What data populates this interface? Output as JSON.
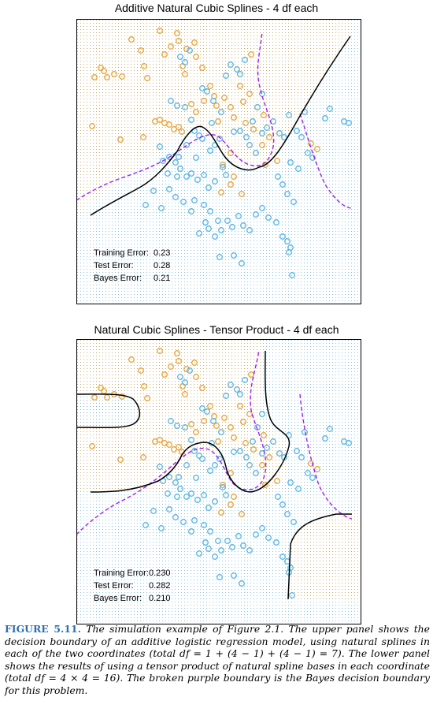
{
  "chart_data": [
    {
      "type": "scatter",
      "title": "Additive Natural Cubic Splines - 4 df each",
      "xlabel": "",
      "ylabel": "",
      "colors": {
        "class0": "#e8a33a",
        "class1": "#58b4e4",
        "model_boundary": "#000000",
        "bayes_boundary": "#a020f0"
      },
      "error_labels": [
        "Training Error:",
        "Test Error:",
        "Bayes Error:"
      ],
      "error_values": [
        "0.23",
        "0.28",
        "0.21"
      ]
    },
    {
      "type": "scatter",
      "title": "Natural Cubic Splines - Tensor Product - 4 df each",
      "xlabel": "",
      "ylabel": "",
      "colors": {
        "class0": "#e8a33a",
        "class1": "#58b4e4",
        "model_boundary": "#000000",
        "bayes_boundary": "#a020f0"
      },
      "error_labels": [
        "Training Error:",
        "Test Error:",
        "Bayes Error:"
      ],
      "error_values": [
        "0.230",
        "0.282",
        "0.210"
      ]
    }
  ],
  "caption": {
    "label": "FIGURE 5.11.",
    "text": "The simulation example of Figure 2.1. The upper panel shows the decision boundary of an additive logistic regression model, using natural splines in each of the two coordinates (total df = 1 + (4 − 1) + (4 − 1) = 7). The lower panel shows the results of using a tensor product of natural spline bases in each coordinate (total df = 4 × 4 = 16). The broken purple boundary is the Bayes decision boundary for this problem."
  }
}
